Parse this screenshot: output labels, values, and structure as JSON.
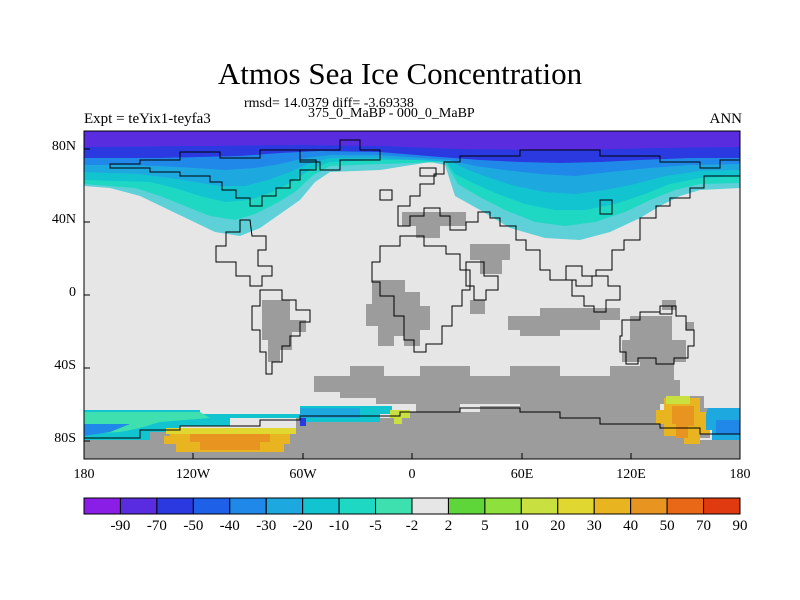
{
  "title": "Atmos Sea Ice Concentration",
  "stats_line": "rmsd= 14.0379 diff= -3.69338",
  "subtitle": "375_0_MaBP - 000_0_MaBP",
  "left_label": "Expt = teYix1-teyfa3",
  "right_label": "ANN",
  "map": {
    "lon_range": [
      -180,
      180
    ],
    "lat_range": [
      -90,
      90
    ],
    "lat_ticks": [
      "80N",
      "40N",
      "0",
      "40S",
      "80S"
    ],
    "lon_ticks": [
      "180",
      "120W",
      "60W",
      "0",
      "60E",
      "120E",
      "180"
    ],
    "land_color": "#9c9c9c",
    "neutral_color": "#e6e6e6"
  },
  "colorbar": {
    "labels": [
      "-90",
      "-70",
      "-50",
      "-40",
      "-30",
      "-20",
      "-10",
      "-5",
      "-2",
      "2",
      "5",
      "10",
      "20",
      "30",
      "40",
      "50",
      "70",
      "90"
    ],
    "colors": [
      "#8a1ee6",
      "#5a2ce0",
      "#2a3ae0",
      "#1f60e8",
      "#2088e8",
      "#1ea8e0",
      "#12c4d0",
      "#1ed8c4",
      "#3ee0b0",
      "#e6e6e6",
      "#5ed63a",
      "#8ee03c",
      "#c8e040",
      "#e0d830",
      "#e8b420",
      "#e89420",
      "#e86818",
      "#e03a10"
    ]
  }
}
